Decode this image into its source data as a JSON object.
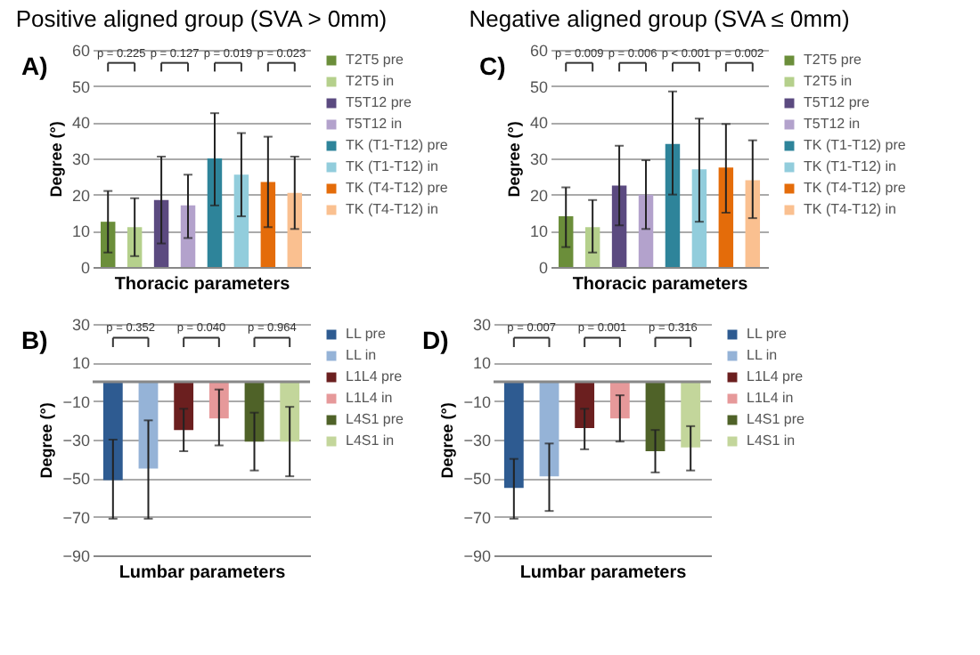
{
  "chart_data": [
    {
      "type": "bar",
      "title": "Positive aligned group (SVA > 0mm)",
      "subtitle": "A)",
      "xlabel": "Thoracic parameters",
      "ylabel": "Degree (°)",
      "categories": [
        null,
        null,
        null,
        null,
        null,
        null,
        null,
        null
      ],
      "series": [
        {
          "name": "T2T5 pre",
          "color": "#6b8e3a",
          "values": [
            12.5,
            null,
            null,
            null,
            null,
            null,
            null,
            null
          ],
          "errors": [
            [
              4,
              21
            ],
            null,
            null,
            null,
            null,
            null,
            null,
            null
          ]
        },
        {
          "name": "T2T5 in",
          "color": "#b5d08c",
          "values": [
            null,
            11,
            null,
            null,
            null,
            null,
            null,
            null
          ],
          "errors": [
            null,
            [
              3,
              19
            ],
            null,
            null,
            null,
            null,
            null,
            null
          ]
        },
        {
          "name": "T5T12 pre",
          "color": "#5b4a80",
          "values": [
            null,
            null,
            18.5,
            null,
            null,
            null,
            null,
            null
          ],
          "errors": [
            null,
            null,
            [
              6.5,
              30.5
            ],
            null,
            null,
            null,
            null,
            null
          ]
        },
        {
          "name": "T5T12 in",
          "color": "#b3a2cc",
          "values": [
            null,
            null,
            null,
            17,
            null,
            null,
            null,
            null
          ],
          "errors": [
            null,
            null,
            null,
            [
              8,
              25.5
            ],
            null,
            null,
            null,
            null
          ]
        },
        {
          "name": "TK (T1-T12) pre",
          "color": "#2e849a",
          "values": [
            null,
            null,
            null,
            null,
            30,
            null,
            null,
            null
          ],
          "errors": [
            null,
            null,
            null,
            null,
            [
              17,
              42.5
            ],
            null,
            null,
            null
          ]
        },
        {
          "name": "TK (T1-T12) in",
          "color": "#92cddc",
          "values": [
            null,
            null,
            null,
            null,
            null,
            25.5,
            null,
            null
          ],
          "errors": [
            null,
            null,
            null,
            null,
            null,
            [
              14,
              37
            ],
            null,
            null
          ]
        },
        {
          "name": "TK (T4-T12) pre",
          "color": "#e46c0a",
          "values": [
            null,
            null,
            null,
            null,
            null,
            null,
            23.5,
            null
          ],
          "errors": [
            null,
            null,
            null,
            null,
            null,
            null,
            [
              11,
              36
            ],
            null
          ]
        },
        {
          "name": "TK (T4-T12) in",
          "color": "#fac090",
          "values": [
            null,
            null,
            null,
            null,
            null,
            null,
            null,
            20.5
          ],
          "errors": [
            null,
            null,
            null,
            null,
            null,
            null,
            null,
            [
              10.5,
              30.5
            ]
          ]
        }
      ],
      "ylim": [
        0,
        60
      ],
      "yticks": [
        0,
        10,
        20,
        30,
        40,
        50,
        60
      ],
      "grid": "y",
      "legend": "right",
      "tick_labels": "y",
      "annotations": [
        "p = 0.225",
        "p = 0.127",
        "p = 0.019",
        "p = 0.023"
      ]
    },
    {
      "type": "bar",
      "title": "Negative aligned group (SVA ≤ 0mm)",
      "subtitle": "C)",
      "xlabel": "Thoracic parameters",
      "ylabel": "Degree (°)",
      "categories": [
        null,
        null,
        null,
        null,
        null,
        null,
        null,
        null
      ],
      "series": [
        {
          "name": "T2T5 pre",
          "color": "#6b8e3a",
          "values": [
            14,
            null,
            null,
            null,
            null,
            null,
            null,
            null
          ],
          "errors": [
            [
              5.5,
              22
            ],
            null,
            null,
            null,
            null,
            null,
            null,
            null
          ]
        },
        {
          "name": "T2T5 in",
          "color": "#b5d08c",
          "values": [
            null,
            11,
            null,
            null,
            null,
            null,
            null,
            null
          ],
          "errors": [
            null,
            [
              4,
              18.5
            ],
            null,
            null,
            null,
            null,
            null,
            null
          ]
        },
        {
          "name": "T5T12 pre",
          "color": "#5b4a80",
          "values": [
            null,
            null,
            22.5,
            null,
            null,
            null,
            null,
            null
          ],
          "errors": [
            null,
            null,
            [
              11.5,
              33.5
            ],
            null,
            null,
            null,
            null,
            null
          ]
        },
        {
          "name": "T5T12 in",
          "color": "#b3a2cc",
          "values": [
            null,
            null,
            null,
            20,
            null,
            null,
            null,
            null
          ],
          "errors": [
            null,
            null,
            null,
            [
              10.5,
              29.5
            ],
            null,
            null,
            null,
            null
          ]
        },
        {
          "name": "TK (T1-T12) pre",
          "color": "#2e849a",
          "values": [
            null,
            null,
            null,
            null,
            34,
            null,
            null,
            null
          ],
          "errors": [
            null,
            null,
            null,
            null,
            [
              20,
              48.5
            ],
            null,
            null,
            null
          ]
        },
        {
          "name": "TK (T1-T12) in",
          "color": "#92cddc",
          "values": [
            null,
            null,
            null,
            null,
            null,
            27,
            null,
            null
          ],
          "errors": [
            null,
            null,
            null,
            null,
            null,
            [
              12.5,
              41
            ],
            null,
            null
          ]
        },
        {
          "name": "TK (T4-T12) pre",
          "color": "#e46c0a",
          "values": [
            null,
            null,
            null,
            null,
            null,
            null,
            27.5,
            null
          ],
          "errors": [
            null,
            null,
            null,
            null,
            null,
            null,
            [
              15,
              39.5
            ],
            null
          ]
        },
        {
          "name": "TK (T4-T12) in",
          "color": "#fac090",
          "values": [
            null,
            null,
            null,
            null,
            null,
            null,
            null,
            24
          ],
          "errors": [
            null,
            null,
            null,
            null,
            null,
            null,
            null,
            [
              13.5,
              35
            ]
          ]
        }
      ],
      "ylim": [
        0,
        60
      ],
      "yticks": [
        0,
        10,
        20,
        30,
        40,
        50,
        60
      ],
      "grid": "y",
      "legend": "right",
      "tick_labels": "y",
      "annotations": [
        "p = 0.009",
        "p = 0.006",
        "p < 0.001",
        "p = 0.002"
      ]
    },
    {
      "type": "bar",
      "subtitle": "B)",
      "xlabel": "Lumbar parameters",
      "ylabel": "Degree (°)",
      "categories": [
        null,
        null,
        null,
        null,
        null,
        null
      ],
      "series": [
        {
          "name": "LL pre",
          "color": "#2e5b91",
          "values": [
            -51,
            null,
            null,
            null,
            null,
            null
          ],
          "errors": [
            [
              -71,
              -30
            ],
            null,
            null,
            null,
            null,
            null
          ]
        },
        {
          "name": "LL in",
          "color": "#95b3d7",
          "values": [
            null,
            -45,
            null,
            null,
            null,
            null
          ],
          "errors": [
            null,
            [
              -71,
              -20
            ],
            null,
            null,
            null,
            null
          ]
        },
        {
          "name": "L1L4 pre",
          "color": "#6b1f1f",
          "values": [
            null,
            null,
            -25,
            null,
            null,
            null
          ],
          "errors": [
            null,
            null,
            [
              -36,
              -14
            ],
            null,
            null,
            null
          ]
        },
        {
          "name": "L1L4 in",
          "color": "#e6999a",
          "values": [
            null,
            null,
            null,
            -19,
            null,
            null
          ],
          "errors": [
            null,
            null,
            null,
            [
              -33,
              -4
            ],
            null,
            null
          ]
        },
        {
          "name": "L4S1 pre",
          "color": "#4f6228",
          "values": [
            null,
            null,
            null,
            null,
            -31,
            null
          ],
          "errors": [
            null,
            null,
            null,
            null,
            [
              -46,
              -16
            ],
            null
          ]
        },
        {
          "name": "L4S1 in",
          "color": "#c3d69b",
          "values": [
            null,
            null,
            null,
            null,
            null,
            -31
          ],
          "errors": [
            null,
            null,
            null,
            null,
            null,
            [
              -49,
              -13
            ]
          ]
        }
      ],
      "ylim": [
        -90,
        30
      ],
      "yticks": [
        -90,
        -70,
        -50,
        -30,
        -10,
        10,
        30
      ],
      "grid": "y",
      "legend": "right",
      "tick_labels": "y",
      "annotations": [
        "p = 0.352",
        "p = 0.040",
        "p = 0.964"
      ]
    },
    {
      "type": "bar",
      "subtitle": "D)",
      "xlabel": "Lumbar parameters",
      "ylabel": "Degree (°)",
      "categories": [
        null,
        null,
        null,
        null,
        null,
        null
      ],
      "series": [
        {
          "name": "LL pre",
          "color": "#2e5b91",
          "values": [
            -55,
            null,
            null,
            null,
            null,
            null
          ],
          "errors": [
            [
              -71,
              -40
            ],
            null,
            null,
            null,
            null,
            null
          ]
        },
        {
          "name": "LL in",
          "color": "#95b3d7",
          "values": [
            null,
            -49,
            null,
            null,
            null,
            null
          ],
          "errors": [
            null,
            [
              -67,
              -32
            ],
            null,
            null,
            null,
            null
          ]
        },
        {
          "name": "L1L4 pre",
          "color": "#6b1f1f",
          "values": [
            null,
            null,
            -24,
            null,
            null,
            null
          ],
          "errors": [
            null,
            null,
            [
              -35,
              -14
            ],
            null,
            null,
            null
          ]
        },
        {
          "name": "L1L4 in",
          "color": "#e6999a",
          "values": [
            null,
            null,
            null,
            -19,
            null,
            null
          ],
          "errors": [
            null,
            null,
            null,
            [
              -31,
              -7
            ],
            null,
            null
          ]
        },
        {
          "name": "L4S1 pre",
          "color": "#4f6228",
          "values": [
            null,
            null,
            null,
            null,
            -36,
            null
          ],
          "errors": [
            null,
            null,
            null,
            null,
            [
              -47,
              -25
            ],
            null
          ]
        },
        {
          "name": "L4S1 in",
          "color": "#c3d69b",
          "values": [
            null,
            null,
            null,
            null,
            null,
            -34
          ],
          "errors": [
            null,
            null,
            null,
            null,
            null,
            [
              -46,
              -23
            ]
          ]
        }
      ],
      "ylim": [
        -90,
        30
      ],
      "yticks": [
        -90,
        -70,
        -50,
        -30,
        -10,
        10,
        30
      ],
      "grid": "y",
      "legend": "right",
      "tick_labels": "y",
      "annotations": [
        "p = 0.007",
        "p = 0.001",
        "p = 0.316"
      ]
    }
  ]
}
